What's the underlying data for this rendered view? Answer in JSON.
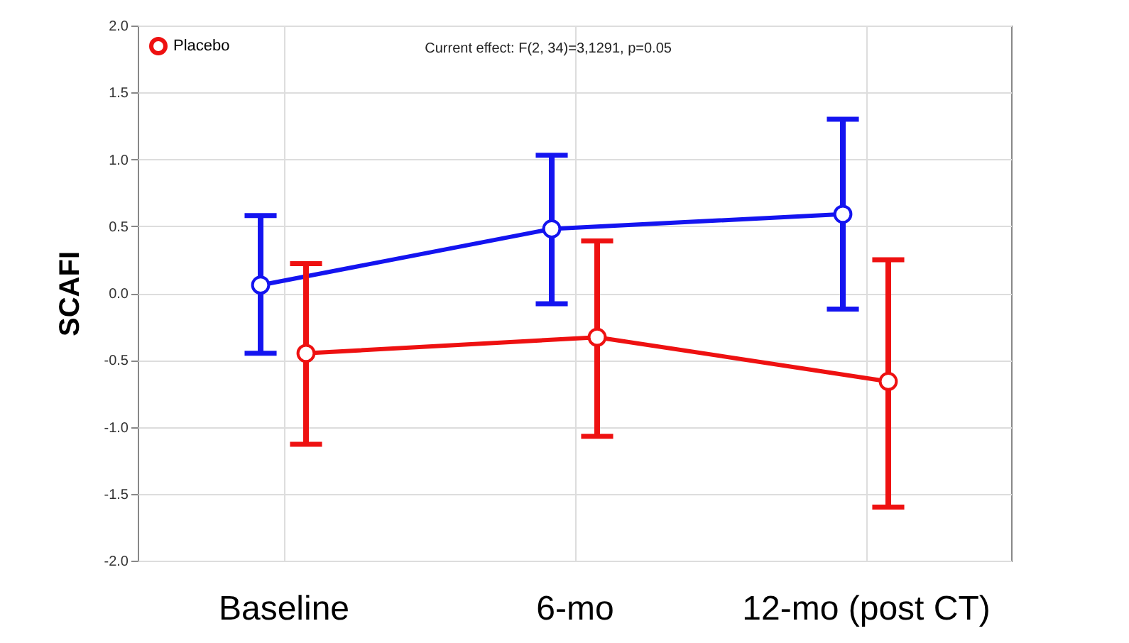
{
  "chart_data": {
    "type": "line",
    "ylabel": "SCAFI",
    "annotations": [
      "Current effect: F(2, 34)=3,1291, p=0.05"
    ],
    "categories": [
      "Baseline",
      "6-mo",
      "12-mo  (post CT)"
    ],
    "series": [
      {
        "color": "#1414f0",
        "values": [
          0.06,
          0.48,
          0.59
        ],
        "errors": [
          [
            -0.45,
            0.58
          ],
          [
            -0.08,
            1.03
          ],
          [
            -0.12,
            1.3
          ]
        ]
      },
      {
        "name": "Placebo",
        "color": "#ee1111",
        "values": [
          -0.45,
          -0.33,
          -0.66
        ],
        "errors": [
          [
            -1.13,
            0.22
          ],
          [
            -1.07,
            0.39
          ],
          [
            -1.6,
            0.25
          ]
        ]
      }
    ],
    "ylim": [
      -2,
      2
    ],
    "yticks": [
      {
        "value": -2,
        "label": "-2.0"
      },
      {
        "value": -1.5,
        "label": "-1.5"
      },
      {
        "value": -1,
        "label": "-1.0"
      },
      {
        "value": -0.5,
        "label": "-0.5"
      },
      {
        "value": 0,
        "label": "0.0"
      },
      {
        "value": 0.5,
        "label": "0.5"
      },
      {
        "value": 1,
        "label": "1.0"
      },
      {
        "value": 1.5,
        "label": "1.5"
      },
      {
        "value": 2,
        "label": "2.0"
      }
    ],
    "grid": true,
    "legend": "top left",
    "marker": "circle"
  }
}
